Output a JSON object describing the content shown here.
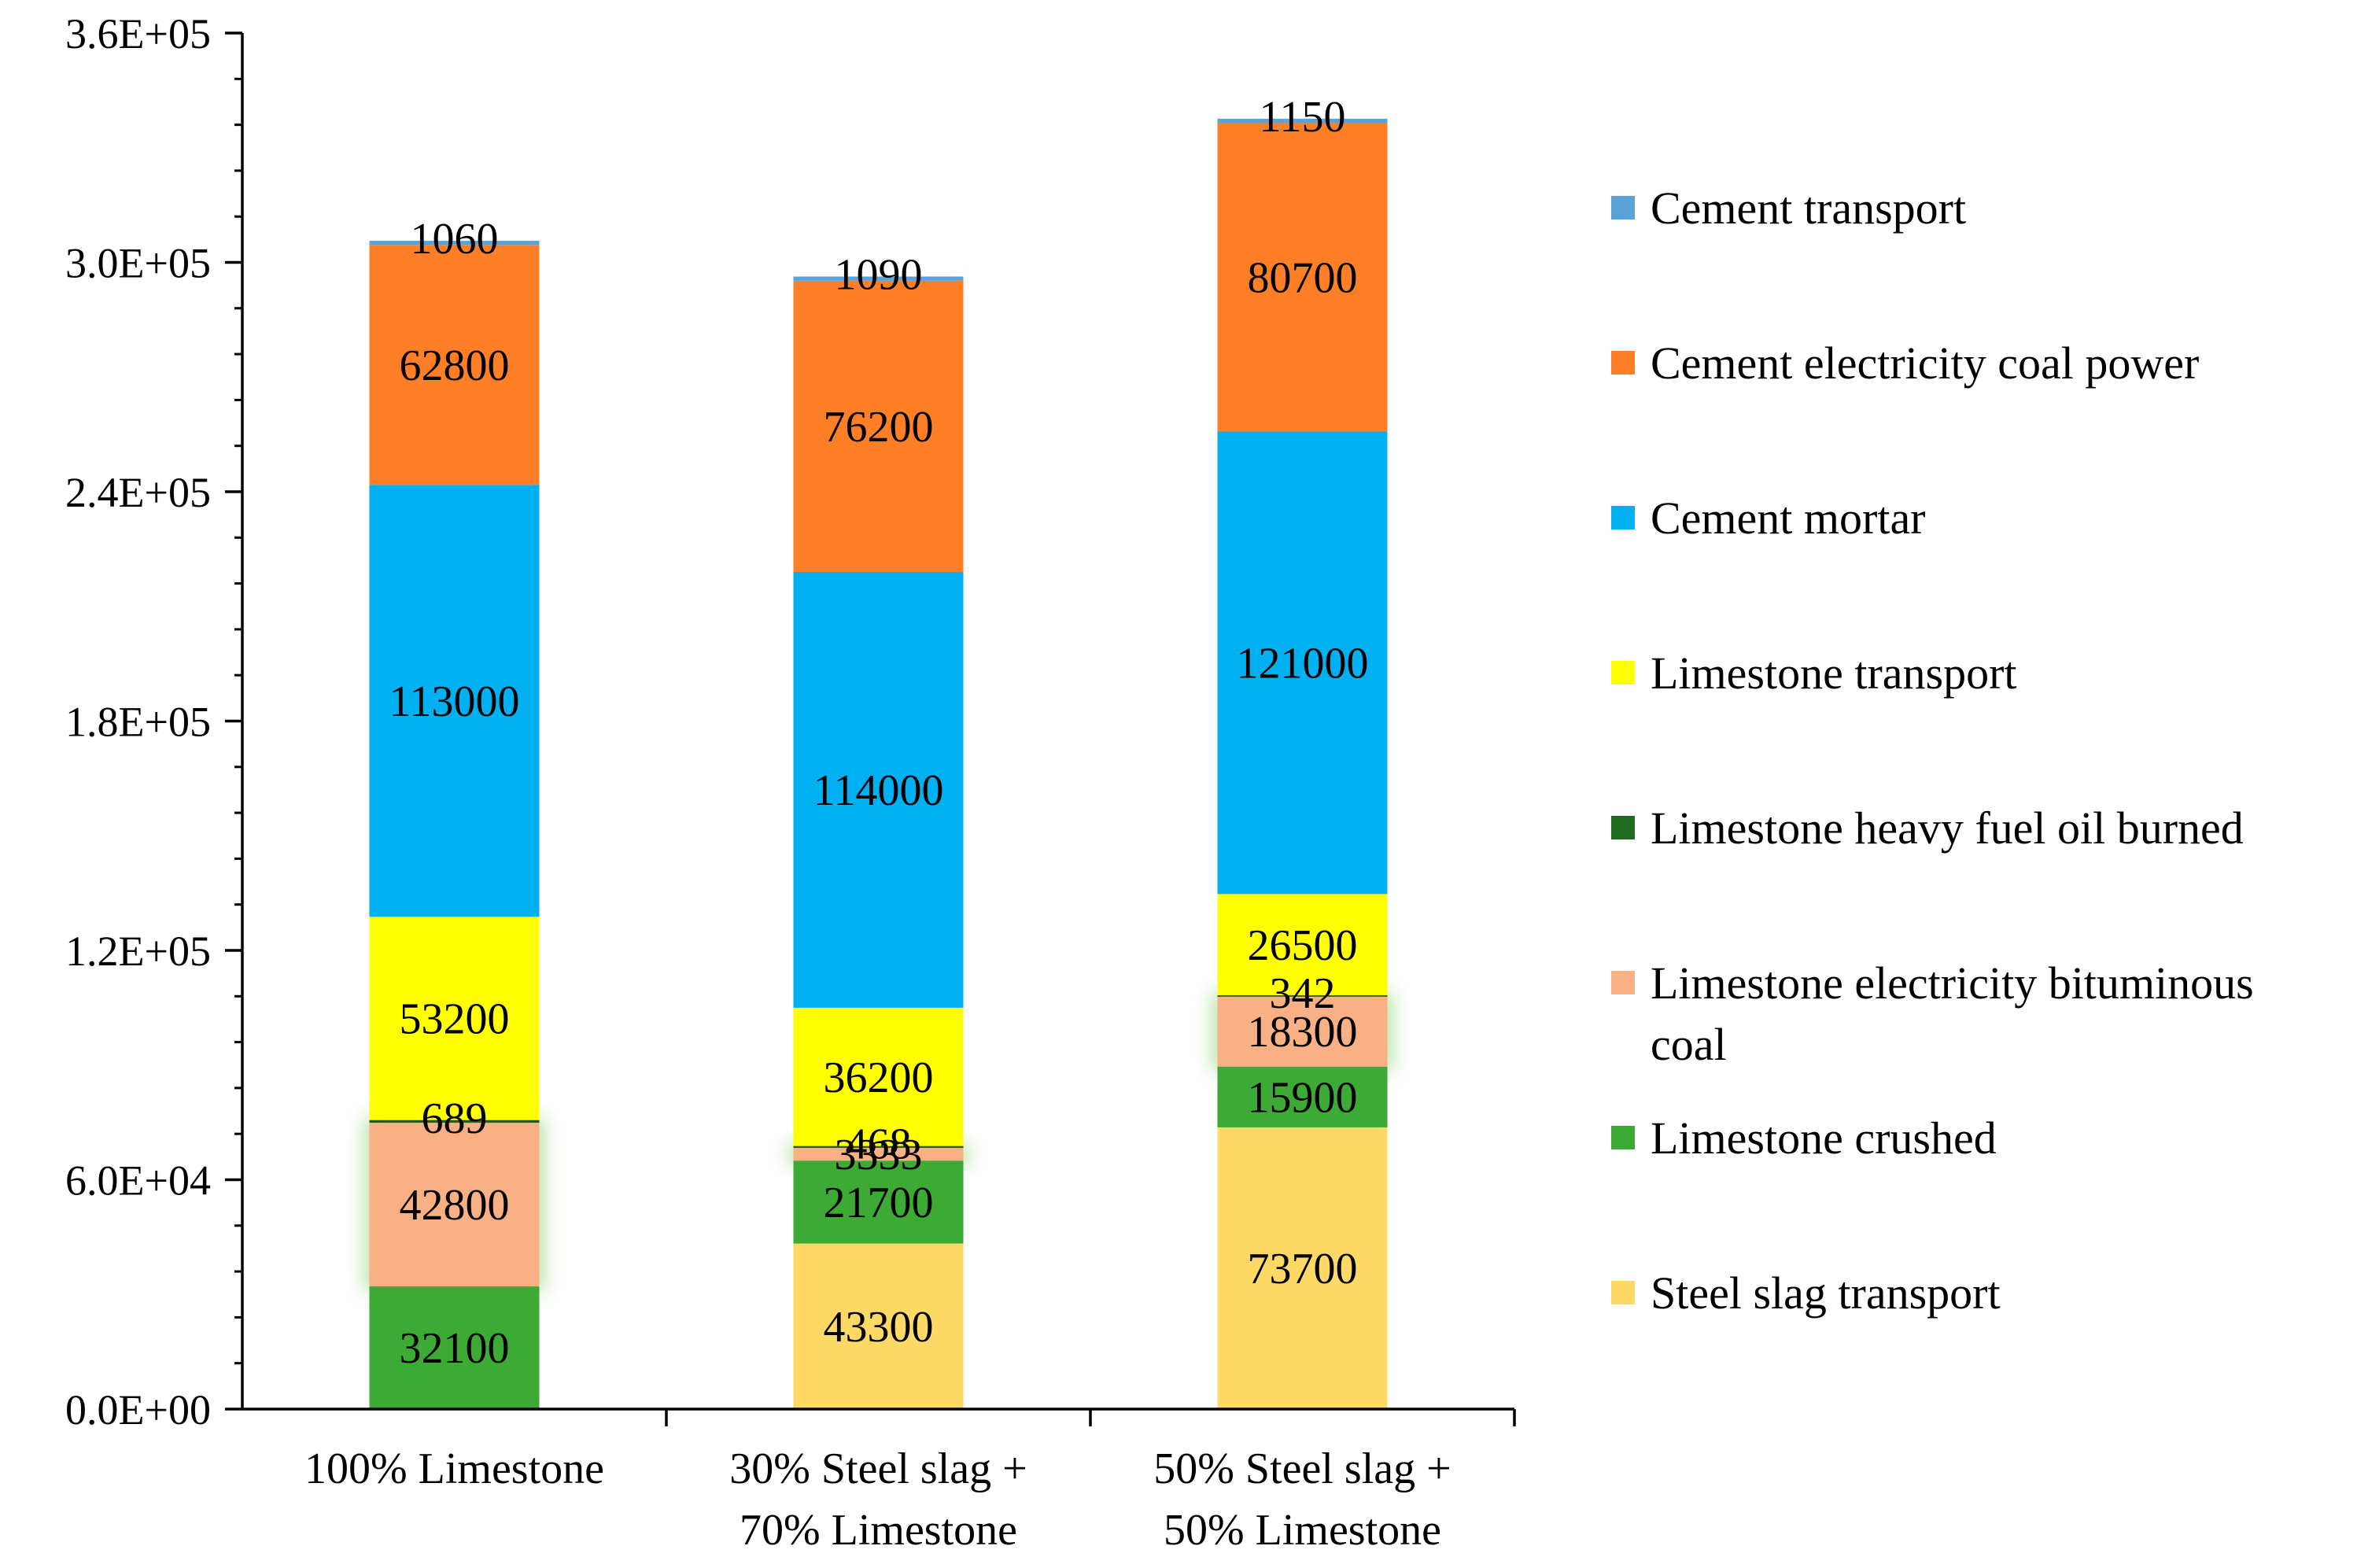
{
  "chart_data": {
    "type": "bar",
    "stacked": true,
    "title": "",
    "xlabel": "",
    "ylabel": "",
    "ylim": [
      0,
      360000
    ],
    "yticks": [
      {
        "value": 0,
        "label": "0.0E+00"
      },
      {
        "value": 60000,
        "label": "6.0E+04"
      },
      {
        "value": 120000,
        "label": "1.2E+05"
      },
      {
        "value": 180000,
        "label": "1.8E+05"
      },
      {
        "value": 240000,
        "label": "2.4E+05"
      },
      {
        "value": 300000,
        "label": "3.0E+05"
      },
      {
        "value": 360000,
        "label": "3.6E+05"
      }
    ],
    "minor_tick_step": 12000,
    "categories": [
      [
        "100% Limestone"
      ],
      [
        "30% Steel slag +",
        "70% Limestone"
      ],
      [
        "50% Steel slag +",
        "50% Limestone"
      ]
    ],
    "series": [
      {
        "name": "Steel slag transport",
        "color": "#FFD966",
        "values": [
          0,
          43300,
          73700
        ],
        "labels": [
          "",
          "43300",
          "73700"
        ]
      },
      {
        "name": "Limestone crushed",
        "color": "#3DAA35",
        "values": [
          32100,
          21700,
          15900
        ],
        "labels": [
          "32100",
          "21700",
          "15900"
        ]
      },
      {
        "name": "Limestone electricity bituminous coal",
        "color": "#F8B084",
        "values": [
          42800,
          3333,
          18300
        ],
        "labels": [
          "42800",
          "3333",
          "18300"
        ]
      },
      {
        "name": "Limestone heavy fuel oil burned",
        "color": "#1E6B1E",
        "values": [
          689,
          468,
          342
        ],
        "labels": [
          "689",
          "468",
          "342"
        ]
      },
      {
        "name": "Limestone transport",
        "color": "#FFFF00",
        "values": [
          53200,
          36200,
          26500
        ],
        "labels": [
          "53200",
          "36200",
          "26500"
        ]
      },
      {
        "name": "Cement mortar",
        "color": "#00B0F0",
        "values": [
          113000,
          114000,
          121000
        ],
        "labels": [
          "113000",
          "114000",
          "121000"
        ]
      },
      {
        "name": "Cement electricity coal power",
        "color": "#FF7F27",
        "values": [
          62800,
          76200,
          80700
        ],
        "labels": [
          "62800",
          "76200",
          "80700"
        ]
      },
      {
        "name": "Cement transport",
        "color": "#5BA3D6",
        "values": [
          1060,
          1090,
          1150
        ],
        "labels": [
          "1060",
          "1090",
          "1150"
        ]
      }
    ],
    "legend": {
      "placement": "right",
      "order": [
        [
          "Cement transport"
        ],
        [
          "Cement electricity coal power"
        ],
        [
          "Cement mortar"
        ],
        [
          "Limestone transport"
        ],
        [
          "Limestone heavy fuel oil burned"
        ],
        [
          "Limestone electricity bituminous",
          "coal"
        ],
        [
          "Limestone crushed"
        ],
        [
          "Steel slag transport"
        ]
      ],
      "colors": [
        "#5BA3D6",
        "#FF7F27",
        "#00B0F0",
        "#FFFF00",
        "#1E6B1E",
        "#F8B084",
        "#3DAA35",
        "#FFD966"
      ]
    }
  }
}
